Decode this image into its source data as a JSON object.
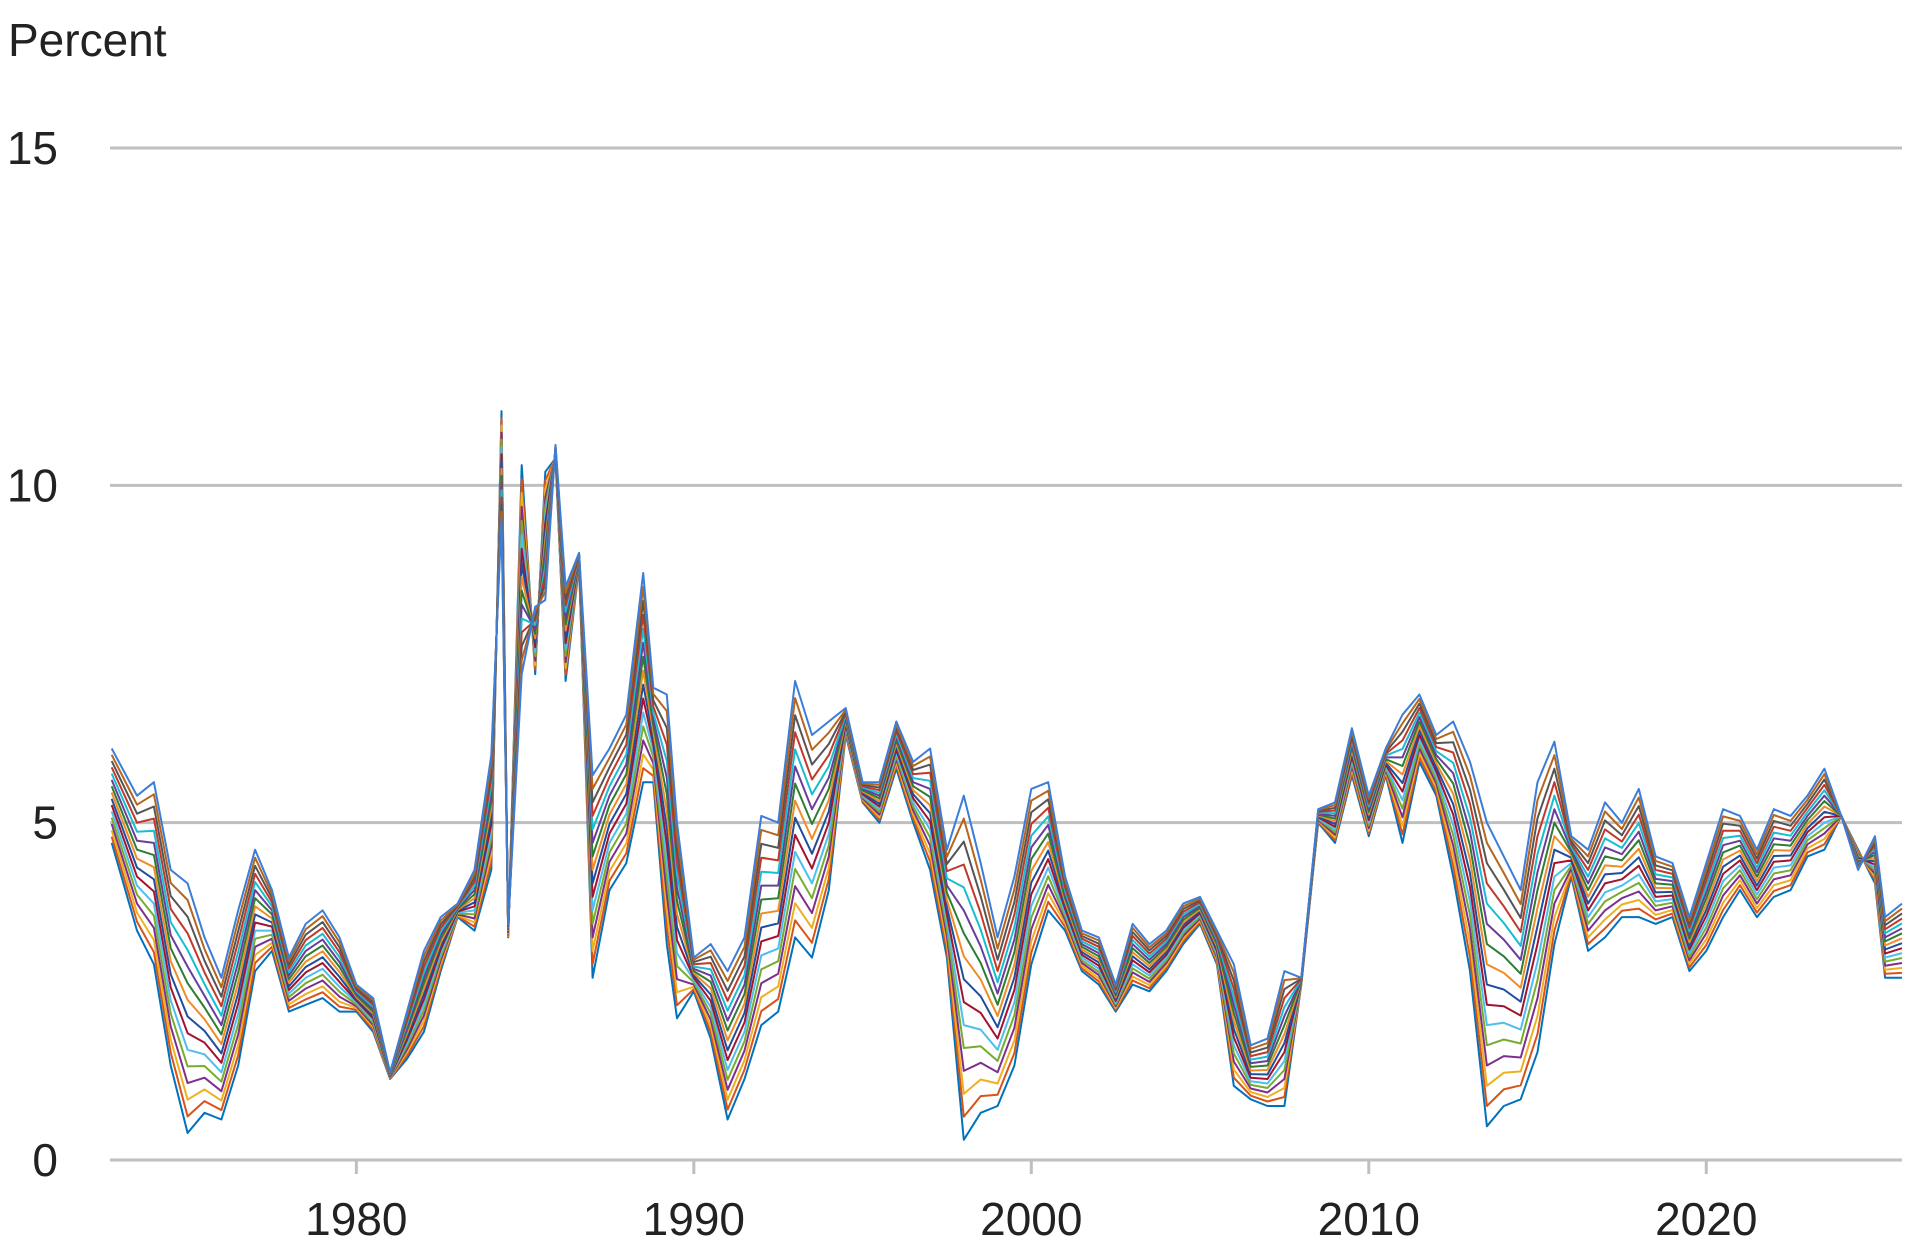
{
  "chart_data": {
    "type": "line",
    "title": "",
    "xlabel": "",
    "ylabel": "Percent",
    "xlim": [
      1972.7,
      2025.8
    ],
    "ylim": [
      0,
      15
    ],
    "y_ticks": [
      0,
      5,
      10,
      15
    ],
    "x_ticks": [
      1980,
      1990,
      2000,
      2010,
      2020
    ],
    "grid": "horizontal",
    "legend": "none",
    "palette": [
      "#0072bd",
      "#d95319",
      "#edb120",
      "#7e2f8e",
      "#77ac30",
      "#4dbeee",
      "#a2142f",
      "#1f4e9c",
      "#f08c28",
      "#2e7d32",
      "#6a3d9a",
      "#17becf",
      "#c0392b",
      "#555555",
      "#b5651d",
      "#3b7dd8"
    ],
    "series_count": 16,
    "bottom_series": {
      "x": [
        1972.75,
        1973.5,
        1974,
        1974.5,
        1975,
        1975.5,
        1976,
        1976.5,
        1977,
        1977.5,
        1978,
        1978.5,
        1979,
        1979.5,
        1980,
        1980.5,
        1981,
        1981.5,
        1982,
        1982.5,
        1983,
        1983.5,
        1984,
        1984.3,
        1984.5,
        1984.9,
        1985.3,
        1985.6,
        1985.9,
        1986.2,
        1986.6,
        1987,
        1987.5,
        1988,
        1988.5,
        1988.8,
        1989.2,
        1989.5,
        1990,
        1990.5,
        1991,
        1991.5,
        1992,
        1992.5,
        1993,
        1993.5,
        1994,
        1994.5,
        1995,
        1995.5,
        1996,
        1996.5,
        1997,
        1997.5,
        1998,
        1998.5,
        1999,
        1999.5,
        2000,
        2000.5,
        2001,
        2001.5,
        2002,
        2002.5,
        2003,
        2003.5,
        2004,
        2004.5,
        2005,
        2005.5,
        2006,
        2006.5,
        2007,
        2007.5,
        2008,
        2008.5,
        2009,
        2009.5,
        2010,
        2010.5,
        2011,
        2011.5,
        2012,
        2012.5,
        2013,
        2013.5,
        2014,
        2014.5,
        2015,
        2015.5,
        2016,
        2016.5,
        2017,
        2017.5,
        2018,
        2018.5,
        2019,
        2019.5,
        2020,
        2020.5,
        2021,
        2021.5,
        2022,
        2022.5,
        2023,
        2023.5,
        2024,
        2024.5,
        2025,
        2025.3,
        2025.8
      ],
      "values": [
        4.7,
        3.4,
        2.9,
        1.4,
        0.4,
        0.7,
        0.6,
        1.4,
        2.8,
        3.1,
        2.2,
        2.3,
        2.4,
        2.2,
        2.2,
        1.9,
        1.2,
        1.5,
        1.9,
        2.8,
        3.6,
        3.4,
        4.3,
        11.1,
        3.3,
        10.3,
        7.2,
        10.2,
        10.4,
        7.1,
        8.8,
        2.7,
        4.0,
        4.4,
        5.6,
        5.6,
        3.2,
        2.1,
        2.5,
        1.8,
        0.6,
        1.2,
        2.0,
        2.2,
        3.3,
        3.0,
        4.0,
        6.3,
        5.3,
        5.0,
        5.8,
        5.0,
        4.3,
        3.0,
        0.3,
        0.7,
        0.8,
        1.4,
        2.9,
        3.7,
        3.4,
        2.8,
        2.6,
        2.2,
        2.6,
        2.5,
        2.8,
        3.2,
        3.5,
        2.9,
        1.1,
        0.9,
        0.8,
        0.8,
        2.6,
        5.0,
        4.7,
        5.7,
        4.8,
        5.7,
        4.7,
        5.9,
        5.4,
        4.2,
        2.8,
        0.5,
        0.8,
        0.9,
        1.6,
        3.2,
        4.2,
        3.1,
        3.3,
        3.6,
        3.6,
        3.5,
        3.6,
        2.8,
        3.1,
        3.6,
        4.0,
        3.6,
        3.9,
        4.0,
        4.5,
        4.6,
        5.1,
        4.6,
        4.1,
        2.7,
        2.7
      ]
    },
    "top_series": {
      "x": [
        1972.75,
        1973.5,
        1974,
        1974.5,
        1975,
        1975.5,
        1976,
        1976.5,
        1977,
        1977.5,
        1978,
        1978.5,
        1979,
        1979.5,
        1980,
        1980.5,
        1981,
        1981.5,
        1982,
        1982.5,
        1983,
        1983.5,
        1984,
        1984.3,
        1984.5,
        1984.9,
        1985.3,
        1985.6,
        1985.9,
        1986.2,
        1986.6,
        1987,
        1987.5,
        1988,
        1988.5,
        1988.8,
        1989.2,
        1989.5,
        1990,
        1990.5,
        1991,
        1991.5,
        1992,
        1992.5,
        1993,
        1993.5,
        1994,
        1994.5,
        1995,
        1995.5,
        1996,
        1996.5,
        1997,
        1997.5,
        1998,
        1998.5,
        1999,
        1999.5,
        2000,
        2000.5,
        2001,
        2001.5,
        2002,
        2002.5,
        2003,
        2003.5,
        2004,
        2004.5,
        2005,
        2005.5,
        2006,
        2006.5,
        2007,
        2007.5,
        2008,
        2008.5,
        2009,
        2009.5,
        2010,
        2010.5,
        2011,
        2011.5,
        2012,
        2012.5,
        2013,
        2013.5,
        2014,
        2014.5,
        2015,
        2015.5,
        2016,
        2016.5,
        2017,
        2017.5,
        2018,
        2018.5,
        2019,
        2019.5,
        2020,
        2020.5,
        2021,
        2021.5,
        2022,
        2022.5,
        2023,
        2023.5,
        2024,
        2024.5,
        2025,
        2025.3,
        2025.8
      ],
      "values": [
        6.1,
        5.4,
        5.6,
        4.3,
        4.1,
        3.3,
        2.7,
        3.7,
        4.6,
        4.0,
        3.0,
        3.5,
        3.7,
        3.3,
        2.6,
        2.4,
        1.3,
        2.2,
        3.1,
        3.6,
        3.8,
        4.3,
        6.0,
        9.5,
        3.5,
        7.2,
        8.2,
        8.3,
        10.6,
        8.5,
        9.0,
        5.7,
        6.1,
        6.6,
        8.7,
        7.0,
        6.9,
        5.0,
        3.0,
        3.2,
        2.8,
        3.3,
        5.1,
        5.0,
        7.1,
        6.3,
        6.5,
        6.7,
        5.6,
        5.6,
        6.5,
        5.9,
        6.1,
        4.6,
        5.4,
        4.4,
        3.3,
        4.2,
        5.5,
        5.6,
        4.2,
        3.4,
        3.3,
        2.6,
        3.5,
        3.2,
        3.4,
        3.8,
        3.9,
        3.4,
        2.9,
        1.7,
        1.8,
        2.8,
        2.7,
        5.2,
        5.3,
        6.4,
        5.4,
        6.1,
        6.6,
        6.9,
        6.3,
        6.5,
        5.9,
        5.0,
        4.5,
        4.0,
        5.6,
        6.2,
        4.8,
        4.6,
        5.3,
        5.0,
        5.5,
        4.5,
        4.4,
        3.6,
        4.4,
        5.2,
        5.1,
        4.6,
        5.2,
        5.1,
        5.4,
        5.8,
        5.1,
        4.3,
        4.8,
        3.6,
        3.8
      ]
    }
  }
}
